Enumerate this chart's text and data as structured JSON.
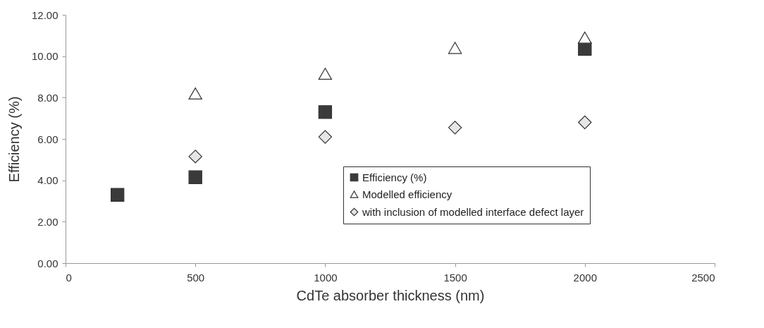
{
  "chart_data": {
    "type": "scatter",
    "xlabel": "CdTe absorber thickness (nm)",
    "ylabel": "Efficiency (%)",
    "xlim": [
      0,
      2500
    ],
    "xticks": [
      0,
      500,
      1000,
      1500,
      2000,
      2500
    ],
    "ylim": [
      0,
      12
    ],
    "yticks": [
      {
        "value": 0,
        "label": "0.00"
      },
      {
        "value": 2,
        "label": "2.00"
      },
      {
        "value": 4,
        "label": "4.00"
      },
      {
        "value": 6,
        "label": "6.00"
      },
      {
        "value": 8,
        "label": "8.00"
      },
      {
        "value": 10,
        "label": "10.00"
      },
      {
        "value": 12,
        "label": "12.00"
      }
    ],
    "legend": "bottom right",
    "grid": false,
    "series": [
      {
        "name": "Efficiency (%)",
        "color": "#3a3a3a",
        "marker": "square",
        "x": [
          200,
          500,
          1000,
          2000
        ],
        "values": [
          3.3,
          4.15,
          7.3,
          10.35
        ]
      },
      {
        "name": "Modelled efficiency",
        "color": "#ffffff",
        "marker": "triangle",
        "x": [
          500,
          1000,
          1500,
          2000
        ],
        "values": [
          8.2,
          9.15,
          10.4,
          10.9
        ]
      },
      {
        "name": "with inclusion of modelled interface defect layer",
        "color": "#e6e6e6",
        "marker": "diamond",
        "x": [
          500,
          1000,
          1500,
          2000
        ],
        "values": [
          5.15,
          6.1,
          6.55,
          6.8
        ]
      }
    ]
  }
}
